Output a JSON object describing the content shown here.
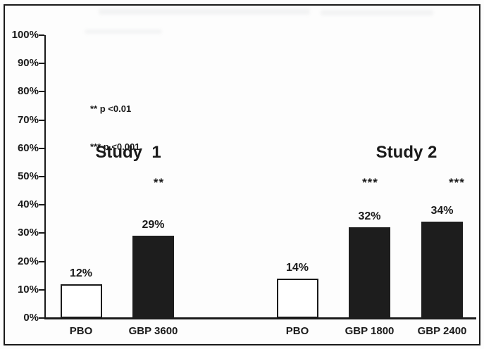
{
  "chart_data": {
    "type": "bar",
    "title": "",
    "xlabel": "",
    "ylabel": "",
    "ylim": [
      0,
      100
    ],
    "grid": false,
    "legend_position": "upper-left-inside",
    "yticks": [
      "100%",
      "90%",
      "80%",
      "70%",
      "60%",
      "50%",
      "40%",
      "30%",
      "20%",
      "10%",
      "0%"
    ],
    "legend_note": [
      "** p <0.01",
      "*** p <0.001"
    ],
    "groups": [
      {
        "label": "Study  1",
        "bars": [
          {
            "category": "PBO",
            "value": 12,
            "label": "12%",
            "fill": "white",
            "significance": ""
          },
          {
            "category": "GBP 3600",
            "value": 29,
            "label": "29%",
            "fill": "black",
            "significance": "**"
          }
        ]
      },
      {
        "label": "Study 2",
        "bars": [
          {
            "category": "PBO",
            "value": 14,
            "label": "14%",
            "fill": "white",
            "significance": ""
          },
          {
            "category": "GBP 1800",
            "value": 32,
            "label": "32%",
            "fill": "black",
            "significance": "***"
          },
          {
            "category": "GBP 2400",
            "value": 34,
            "label": "34%",
            "fill": "black",
            "significance": "***"
          }
        ]
      }
    ],
    "colors": {
      "dark_bar": "#1d1d1d",
      "light_bar": "#ffffff",
      "axis": "#1a1a1a",
      "text": "#1a1a1a",
      "background": "#fdfdfd"
    }
  }
}
